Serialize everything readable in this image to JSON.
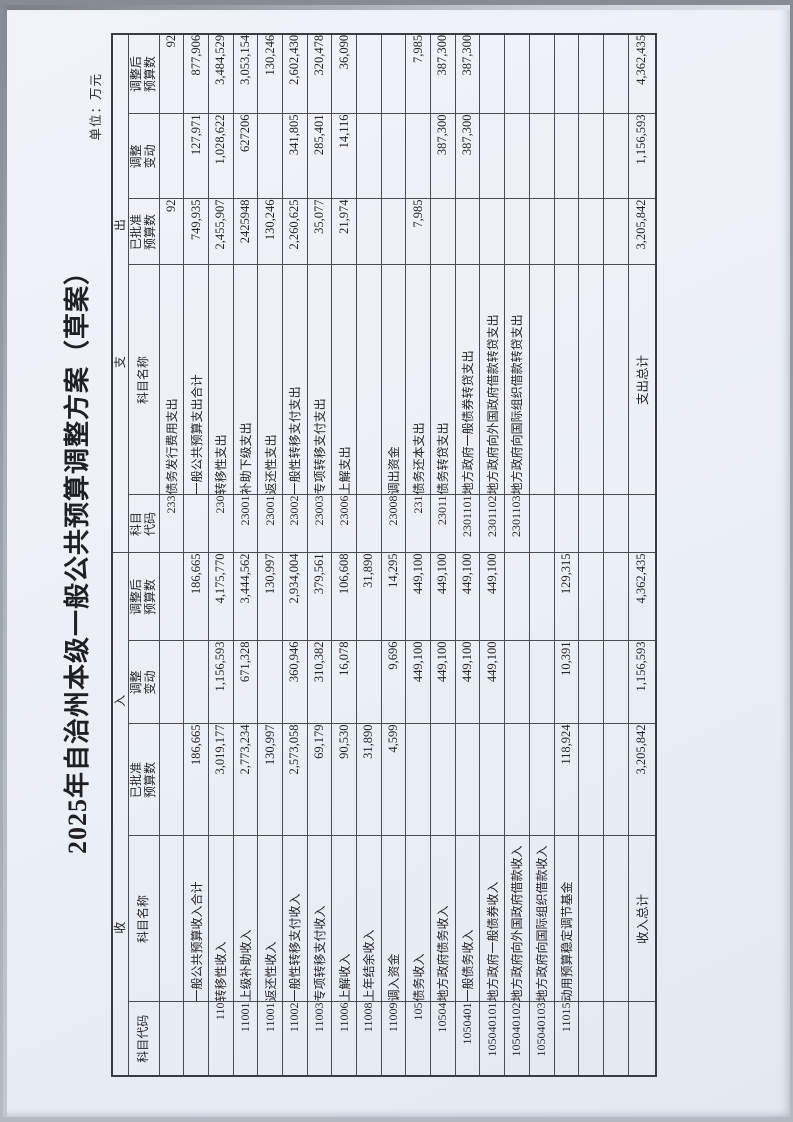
{
  "page": {
    "title": "2025年自治州本级一般公共预算调整方案（草案）",
    "unit_label": "单位：万元"
  },
  "colors": {
    "paper": "#edf1f7",
    "table_line": "#4a4d54",
    "text": "#24252a"
  },
  "table": {
    "group": {
      "income": [
        "收",
        "入"
      ],
      "expenditure": [
        "支",
        "出"
      ]
    },
    "headers": {
      "income": [
        "科目代码",
        "科目名称",
        "已批准\n预算数",
        "调整\n变动",
        "调整后\n预算数"
      ],
      "expenditure": [
        "科目\n代码",
        "科目名称",
        "已批准\n预算数",
        "调整\n变动",
        "调整后\n预算数"
      ]
    },
    "rows": [
      {
        "income_code": "",
        "income_name": "",
        "income_approved": "",
        "income_change": "",
        "income_adjusted": "",
        "exp_code": "233",
        "exp_name": "债务发行费用支出",
        "exp_approved": "92",
        "exp_change": "",
        "exp_adjusted": "92",
        "bold": false
      },
      {
        "income_code": "",
        "income_name": "一般公共预算收入合计",
        "income_approved": "186,665",
        "income_change": "",
        "income_adjusted": "186,665",
        "exp_code": "",
        "exp_name": "一般公共预算支出合计",
        "exp_approved": "749,935",
        "exp_change": "127,971",
        "exp_adjusted": "877,906",
        "bold": true
      },
      {
        "income_code": "110",
        "income_name": "转移性收入",
        "income_approved": "3,019,177",
        "income_change": "1,156,593",
        "income_adjusted": "4,175,770",
        "exp_code": "230",
        "exp_name": "转移性支出",
        "exp_approved": "2,455,907",
        "exp_change": "1,028,622",
        "exp_adjusted": "3,484,529",
        "bold": true
      },
      {
        "income_code": "11001",
        "income_name": "上级补助收入",
        "income_approved": "2,773,234",
        "income_change": "671,328",
        "income_adjusted": "3,444,562",
        "exp_code": "23001",
        "exp_name": "补助下级支出",
        "exp_approved": "2425948",
        "exp_change": "627206",
        "exp_adjusted": "3,053,154",
        "bold": false
      },
      {
        "income_code": "11001",
        "income_name": "返还性收入",
        "income_approved": "130,997",
        "income_change": "",
        "income_adjusted": "130,997",
        "exp_code": "23001",
        "exp_name": "返还性支出",
        "exp_approved": "130,246",
        "exp_change": "",
        "exp_adjusted": "130,246",
        "bold": false
      },
      {
        "income_code": "11002",
        "income_name": "一般性转移支付收入",
        "income_approved": "2,573,058",
        "income_change": "360,946",
        "income_adjusted": "2,934,004",
        "exp_code": "23002",
        "exp_name": "一般性转移支付支出",
        "exp_approved": "2,260,625",
        "exp_change": "341,805",
        "exp_adjusted": "2,602,430",
        "bold": false
      },
      {
        "income_code": "11003",
        "income_name": "专项转移支付收入",
        "income_approved": "69,179",
        "income_change": "310,382",
        "income_adjusted": "379,561",
        "exp_code": "23003",
        "exp_name": "专项转移支付支出",
        "exp_approved": "35,077",
        "exp_change": "285,401",
        "exp_adjusted": "320,478",
        "bold": false
      },
      {
        "income_code": "11006",
        "income_name": "上解收入",
        "income_approved": "90,530",
        "income_change": "16,078",
        "income_adjusted": "106,608",
        "exp_code": "23006",
        "exp_name": "上解支出",
        "exp_approved": "21,974",
        "exp_change": "14,116",
        "exp_adjusted": "36,090",
        "bold": false
      },
      {
        "income_code": "11008",
        "income_name": "上年结余收入",
        "income_approved": "31,890",
        "income_change": "",
        "income_adjusted": "31,890",
        "exp_code": "",
        "exp_name": "",
        "exp_approved": "",
        "exp_change": "",
        "exp_adjusted": "",
        "bold": false
      },
      {
        "income_code": "11009",
        "income_name": "调入资金",
        "income_approved": "4,599",
        "income_change": "9,696",
        "income_adjusted": "14,295",
        "exp_code": "23008",
        "exp_name": "调出资金",
        "exp_approved": "",
        "exp_change": "",
        "exp_adjusted": "",
        "bold": false
      },
      {
        "income_code": "105",
        "income_name": "债务收入",
        "income_approved": "",
        "income_change": "449,100",
        "income_adjusted": "449,100",
        "exp_code": "231",
        "exp_name": "债务还本支出",
        "exp_approved": "7,985",
        "exp_change": "",
        "exp_adjusted": "7,985",
        "bold": false
      },
      {
        "income_code": "10504",
        "income_name": "地方政府债务收入",
        "income_approved": "",
        "income_change": "449,100",
        "income_adjusted": "449,100",
        "exp_code": "23011",
        "exp_name": "债务转贷支出",
        "exp_approved": "",
        "exp_change": "387,300",
        "exp_adjusted": "387,300",
        "bold": false
      },
      {
        "income_code": "1050401",
        "income_name": "一般债务收入",
        "income_approved": "",
        "income_change": "449,100",
        "income_adjusted": "449,100",
        "exp_code": "2301101",
        "exp_name": "地方政府一般债券转贷支出",
        "exp_approved": "",
        "exp_change": "387,300",
        "exp_adjusted": "387,300",
        "bold": false
      },
      {
        "income_code": "105040101",
        "income_name": "地方政府一般债券收入",
        "income_approved": "",
        "income_change": "449,100",
        "income_adjusted": "449,100",
        "exp_code": "2301102",
        "exp_name": "地方政府向外国政府借款转贷支出",
        "exp_approved": "",
        "exp_change": "",
        "exp_adjusted": "",
        "bold": false
      },
      {
        "income_code": "105040102",
        "income_name": "地方政府向外国政府借款收入",
        "income_approved": "",
        "income_change": "",
        "income_adjusted": "",
        "exp_code": "2301103",
        "exp_name": "地方政府向国际组织借款转贷支出",
        "exp_approved": "",
        "exp_change": "",
        "exp_adjusted": "",
        "bold": false
      },
      {
        "income_code": "105040103",
        "income_name": "地方政府向国际组织借款收入",
        "income_approved": "",
        "income_change": "",
        "income_adjusted": "",
        "exp_code": "",
        "exp_name": "",
        "exp_approved": "",
        "exp_change": "",
        "exp_adjusted": "",
        "bold": false
      },
      {
        "income_code": "11015",
        "income_name": "动用预算稳定调节基金",
        "income_approved": "118,924",
        "income_change": "10,391",
        "income_adjusted": "129,315",
        "exp_code": "",
        "exp_name": "",
        "exp_approved": "",
        "exp_change": "",
        "exp_adjusted": "",
        "bold": false
      },
      {
        "income_code": "",
        "income_name": "",
        "income_approved": "",
        "income_change": "",
        "income_adjusted": "",
        "exp_code": "",
        "exp_name": "",
        "exp_approved": "",
        "exp_change": "",
        "exp_adjusted": "",
        "bold": false
      },
      {
        "income_code": "",
        "income_name": "",
        "income_approved": "",
        "income_change": "",
        "income_adjusted": "",
        "exp_code": "",
        "exp_name": "",
        "exp_approved": "",
        "exp_change": "",
        "exp_adjusted": "",
        "bold": false
      }
    ],
    "totals": {
      "income_label": "收入总计",
      "income_approved": "3,205,842",
      "income_change": "1,156,593",
      "income_adjusted": "4,362,435",
      "expenditure_label": "支出总计",
      "expenditure_approved": "3,205,842",
      "expenditure_change": "1,156,593",
      "expenditure_adjusted": "4,362,435"
    }
  }
}
